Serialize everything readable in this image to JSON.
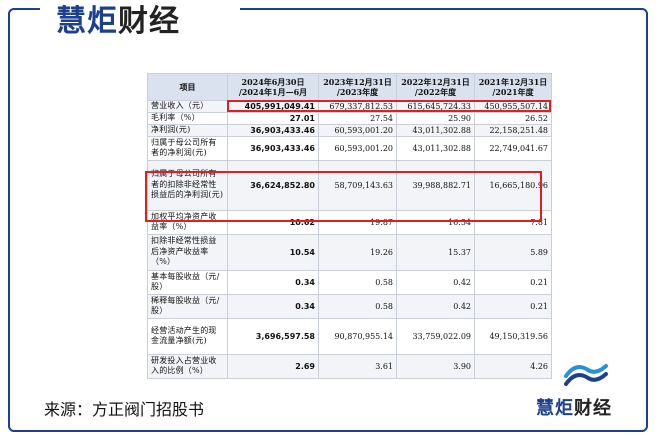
{
  "header": {
    "logo_part1": "慧炬",
    "logo_part2": "财经"
  },
  "table": {
    "headers": [
      "项目",
      "2024年6月30日 /2024年1月—6月",
      "2023年12月31日 /2023年度",
      "2022年12月31日 /2022年度",
      "2021年12月31日 /2021年度"
    ],
    "rows": [
      {
        "label": "营业收入（元）",
        "values": [
          "405,991,049.41",
          "679,337,812.53",
          "615,645,724.33",
          "450,955,507.14"
        ]
      },
      {
        "label": "毛利率（%）",
        "values": [
          "27.01",
          "27.54",
          "25.90",
          "26.52"
        ]
      },
      {
        "label": "净利润(元)",
        "values": [
          "36,903,433.46",
          "60,593,001.20",
          "43,011,302.88",
          "22,158,251.48"
        ]
      },
      {
        "label": "归属于母公司所有者的净利润(元)",
        "values": [
          "36,903,433.46",
          "60,593,001.20",
          "43,011,302.88",
          "22,749,041.67"
        ]
      },
      {
        "label": "归属于母公司所有者的扣除非经常性损益后的净利润(元)",
        "values": [
          "36,624,852.80",
          "58,709,143.63",
          "39,988,882.71",
          "16,665,180.96"
        ]
      },
      {
        "label": "加权平均净资产收益率（%）",
        "values": [
          "10.62",
          "19.87",
          "16.54",
          "7.81"
        ]
      },
      {
        "label": "扣除非经常性损益后净资产收益率（%）",
        "values": [
          "10.54",
          "19.26",
          "15.37",
          "5.89"
        ]
      },
      {
        "label": "基本每股收益（元/股）",
        "values": [
          "0.34",
          "0.58",
          "0.42",
          "0.21"
        ]
      },
      {
        "label": "稀释每股收益（元/股）",
        "values": [
          "0.34",
          "0.58",
          "0.42",
          "0.21"
        ]
      },
      {
        "label": "经营活动产生的现金流量净额(元)",
        "values": [
          "3,696,597.58",
          "90,870,955.14",
          "33,759,022.09",
          "49,150,319.56"
        ]
      },
      {
        "label": "研发投入占营业收入的比例（%）",
        "values": [
          "2.69",
          "3.61",
          "3.90",
          "4.26"
        ]
      }
    ]
  },
  "footer": {
    "source": "来源：方正阀门招股书",
    "logo_part1": "慧炬",
    "logo_part2": "财经"
  },
  "colors": {
    "brand": "#1c3f8e",
    "highlight": "#e02020",
    "header_bg": "#d9e2ee"
  }
}
